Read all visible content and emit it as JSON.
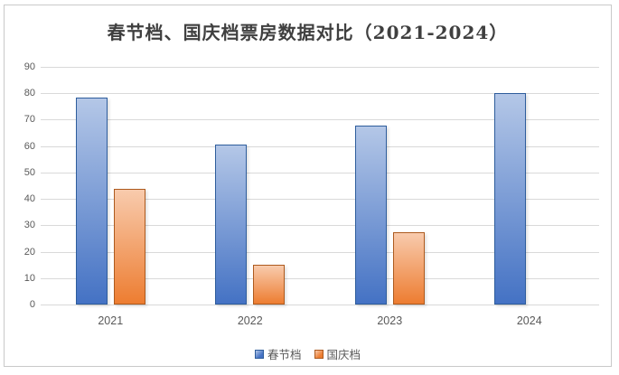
{
  "title": "春节档、国庆档票房数据对比（2021-2024）",
  "chart_data": {
    "type": "bar",
    "title": "春节档、国庆档票房数据对比（2021-2024）",
    "categories": [
      "2021",
      "2022",
      "2023",
      "2024"
    ],
    "series": [
      {
        "name": "春节档",
        "values": [
          78.4,
          60.4,
          67.6,
          80.2
        ],
        "color_top": "#b4c7e7",
        "color_bottom": "#4472c4",
        "border_color": "#2e5d9c"
      },
      {
        "name": "国庆档",
        "values": [
          43.9,
          15.0,
          27.3,
          null
        ],
        "color_top": "#f8cbad",
        "color_bottom": "#ed7d31",
        "border_color": "#ad5a1e"
      }
    ],
    "xlabel": "",
    "ylabel": "",
    "ylim": [
      0,
      90
    ],
    "ytick_step": 10,
    "grid": true,
    "legend_position": "bottom"
  },
  "colors": {
    "gridline": "#d9d9d9",
    "axis_text": "#595959",
    "title_text": "#3f3f3f",
    "frame_border": "#c9c9c9",
    "background": "#ffffff"
  }
}
